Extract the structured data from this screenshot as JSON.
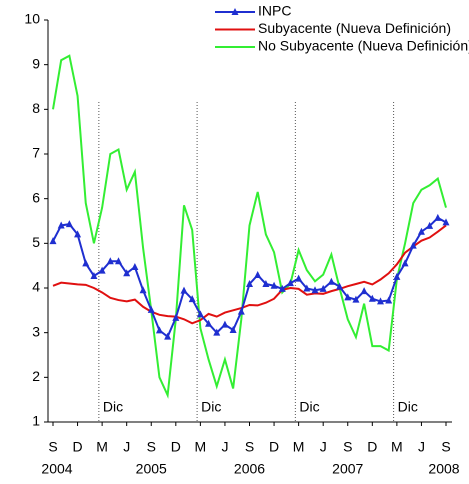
{
  "chart_data": {
    "type": "line",
    "categories": [
      "S",
      null,
      null,
      "D",
      null,
      null,
      "M",
      null,
      null,
      "J",
      null,
      null,
      "S",
      null,
      null,
      "D",
      null,
      null,
      "M",
      null,
      null,
      "J",
      null,
      null,
      "S",
      null,
      null,
      "D",
      null,
      null,
      "M",
      null,
      null,
      "J",
      null,
      null,
      "S",
      null,
      null,
      "D",
      null,
      null,
      "M",
      null,
      null,
      "J",
      null,
      null,
      "S"
    ],
    "year_labels": [
      "2004",
      "2005",
      "2006",
      "2007",
      "2008"
    ],
    "annotations": [
      "Dic",
      "Dic",
      "Dic",
      "Dic"
    ],
    "ylim": [
      1,
      10
    ],
    "yticks": [
      1,
      2,
      3,
      4,
      5,
      6,
      7,
      8,
      9,
      10
    ],
    "grid": false,
    "legend": "top",
    "series": [
      {
        "name": "INPC",
        "color": "#1f2fd0",
        "marker": "triangle",
        "values": [
          5.05,
          5.4,
          5.43,
          5.2,
          4.55,
          4.27,
          4.39,
          4.6,
          4.6,
          4.33,
          4.47,
          3.95,
          3.51,
          3.05,
          2.91,
          3.33,
          3.94,
          3.75,
          3.41,
          3.2,
          3.0,
          3.18,
          3.06,
          3.47,
          4.09,
          4.29,
          4.09,
          4.05,
          3.98,
          4.11,
          4.21,
          3.99,
          3.95,
          3.98,
          4.14,
          4.03,
          3.79,
          3.74,
          3.93,
          3.76,
          3.7,
          3.72,
          4.25,
          4.55,
          4.95,
          5.26,
          5.39,
          5.57,
          5.47
        ]
      },
      {
        "name": "Subyacente (Nueva Definición)",
        "color": "#e01010",
        "values": [
          4.05,
          4.12,
          4.1,
          4.08,
          4.07,
          4.0,
          3.9,
          3.78,
          3.73,
          3.7,
          3.74,
          3.58,
          3.47,
          3.4,
          3.37,
          3.36,
          3.3,
          3.21,
          3.28,
          3.42,
          3.36,
          3.45,
          3.5,
          3.55,
          3.62,
          3.61,
          3.67,
          3.76,
          3.96,
          4.0,
          3.98,
          3.85,
          3.88,
          3.87,
          3.93,
          3.98,
          4.04,
          4.09,
          4.14,
          4.08,
          4.19,
          4.33,
          4.53,
          4.79,
          4.93,
          5.06,
          5.13,
          5.26,
          5.4
        ]
      },
      {
        "name": "No Subyacente (Nueva Definición)",
        "color": "#33ee33",
        "values": [
          8.0,
          9.1,
          9.2,
          8.3,
          5.9,
          5.0,
          5.8,
          7.0,
          7.1,
          6.2,
          6.6,
          4.9,
          3.5,
          2.0,
          1.6,
          3.3,
          5.85,
          5.3,
          3.1,
          2.4,
          1.8,
          2.4,
          1.75,
          3.3,
          5.4,
          6.15,
          5.2,
          4.8,
          3.9,
          4.1,
          4.85,
          4.4,
          4.15,
          4.3,
          4.75,
          4.0,
          3.3,
          2.9,
          3.65,
          2.7,
          2.7,
          2.6,
          4.2,
          5.0,
          5.9,
          6.2,
          6.3,
          6.45,
          5.8
        ]
      }
    ]
  }
}
